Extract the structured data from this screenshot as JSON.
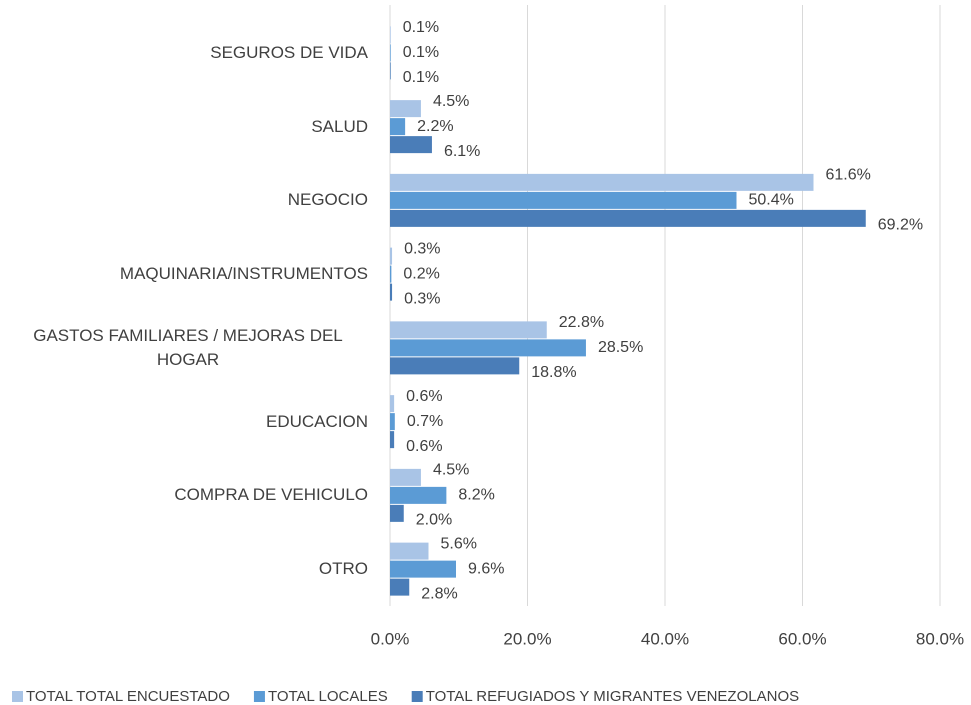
{
  "chart_data": {
    "type": "bar",
    "orientation": "horizontal",
    "categories": [
      "SEGUROS DE VIDA",
      "SALUD",
      "NEGOCIO",
      "MAQUINARIA/INSTRUMENTOS",
      "GASTOS FAMILIARES / MEJORAS DEL HOGAR",
      "EDUCACION",
      "COMPRA DE VEHICULO ",
      "OTRO"
    ],
    "series": [
      {
        "name": "TOTAL TOTAL ENCUESTADO",
        "color": "#a9c4e6",
        "values": [
          0.1,
          4.5,
          61.6,
          0.3,
          22.8,
          0.6,
          4.5,
          5.6
        ],
        "value_labels": [
          "0.1%",
          "4.5%",
          "61.6%",
          "0.3%",
          "22.8%",
          "0.6%",
          "4.5%",
          "5.6%"
        ]
      },
      {
        "name": "TOTAL LOCALES",
        "color": "#5b9bd5",
        "values": [
          0.1,
          2.2,
          50.4,
          0.2,
          28.5,
          0.7,
          8.2,
          9.6
        ],
        "value_labels": [
          "0.1%",
          "2.2%",
          "50.4%",
          "0.2%",
          "28.5%",
          "0.7%",
          "8.2%",
          "9.6%"
        ]
      },
      {
        "name": "TOTAL REFUGIADOS Y MIGRANTES VENEZOLANOS",
        "color": "#4a7db8",
        "values": [
          0.1,
          6.1,
          69.2,
          0.3,
          18.8,
          0.6,
          2.0,
          2.8
        ],
        "value_labels": [
          "0.1%",
          "6.1%",
          "69.2%",
          "0.3%",
          "18.8%",
          "0.6%",
          "2.0%",
          "2.8%"
        ]
      }
    ],
    "xlim": [
      0,
      80
    ],
    "xticks": [
      {
        "value": 0,
        "label": "0.0%"
      },
      {
        "value": 20,
        "label": "20.0%"
      },
      {
        "value": 40,
        "label": "40.0%"
      },
      {
        "value": 60,
        "label": "60.0%"
      },
      {
        "value": 80,
        "label": "80.0%"
      }
    ],
    "grid": true,
    "legend": "bottom"
  }
}
